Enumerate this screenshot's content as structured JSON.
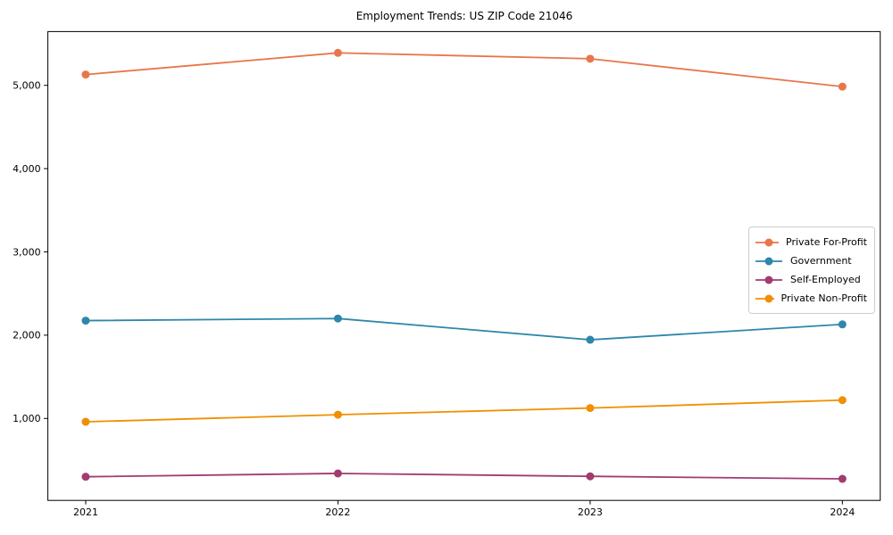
{
  "chart_data": {
    "type": "line",
    "title": "Employment Trends: US ZIP Code 21046",
    "x": [
      2021,
      2022,
      2023,
      2024
    ],
    "x_tick_labels": [
      "2021",
      "2022",
      "2023",
      "2024"
    ],
    "y_ticks": [
      1000,
      2000,
      3000,
      4000,
      5000
    ],
    "y_tick_labels": [
      "1,000",
      "2,000",
      "3,000",
      "4,000",
      "5,000"
    ],
    "xlim": [
      2020.85,
      2024.15
    ],
    "ylim": [
      16,
      5646
    ],
    "xlabel": "",
    "ylabel": "",
    "grid": false,
    "legend_position": "center right",
    "series": [
      {
        "name": "Private For-Profit",
        "color": "#E8764B",
        "values": [
          5130,
          5390,
          5320,
          4985
        ]
      },
      {
        "name": "Government",
        "color": "#2E86AB",
        "values": [
          2175,
          2200,
          1945,
          2130
        ]
      },
      {
        "name": "Self-Employed",
        "color": "#A23B72",
        "values": [
          300,
          340,
          305,
          275
        ]
      },
      {
        "name": "Private Non-Profit",
        "color": "#F18F01",
        "values": [
          960,
          1045,
          1125,
          1220
        ]
      }
    ]
  }
}
